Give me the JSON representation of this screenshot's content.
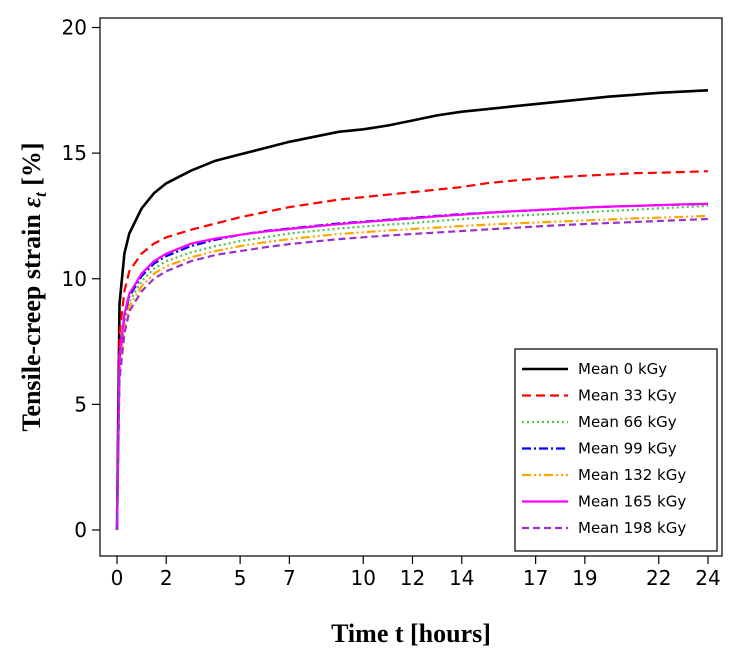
{
  "chart_data": {
    "type": "line",
    "title": "",
    "xlabel": "Time t [hours]",
    "ylabel_text": "Tensile-creep strain ",
    "ylabel_symbol": "ε",
    "ylabel_subscript": "t",
    "ylabel_unit": " [%]",
    "xlim": [
      0,
      24
    ],
    "ylim": [
      -1,
      20.4
    ],
    "x_ticks": [
      0,
      2,
      5,
      7,
      10,
      12,
      14,
      17,
      19,
      22,
      24
    ],
    "x_tick_labels": [
      "0",
      "2",
      "5",
      "7",
      "10",
      "12",
      "14",
      "17",
      "19",
      "22",
      "24"
    ],
    "y_ticks": [
      0,
      5,
      10,
      15,
      20
    ],
    "y_tick_labels": [
      "0",
      "5",
      "10",
      "15",
      "20"
    ],
    "legend_position": "bottom-right",
    "x": [
      0,
      0.1,
      0.3,
      0.5,
      1,
      1.5,
      2,
      3,
      4,
      5,
      6,
      7,
      8,
      9,
      10,
      11,
      12,
      13,
      14,
      15,
      16,
      17,
      18,
      19,
      20,
      21,
      22,
      23,
      24
    ],
    "series": [
      {
        "name": "Mean 0 kGy",
        "color": "#000000",
        "dash": "",
        "values": [
          0,
          9.0,
          11.0,
          11.8,
          12.8,
          13.4,
          13.8,
          14.3,
          14.7,
          14.95,
          15.2,
          15.45,
          15.65,
          15.85,
          15.95,
          16.1,
          16.3,
          16.5,
          16.65,
          16.75,
          16.85,
          16.95,
          17.05,
          17.15,
          17.25,
          17.32,
          17.4,
          17.45,
          17.5
        ]
      },
      {
        "name": "Mean 33 kGy",
        "color": "#ff0000",
        "dash": "9,5",
        "values": [
          0,
          7.8,
          9.5,
          10.3,
          11.0,
          11.4,
          11.65,
          11.95,
          12.2,
          12.45,
          12.65,
          12.85,
          13.0,
          13.15,
          13.25,
          13.35,
          13.45,
          13.55,
          13.65,
          13.8,
          13.9,
          13.98,
          14.05,
          14.1,
          14.15,
          14.2,
          14.22,
          14.25,
          14.28
        ]
      },
      {
        "name": "Mean 66 kGy",
        "color": "#4cc24c",
        "dash": "2,3",
        "values": [
          0,
          6.6,
          8.3,
          9.1,
          9.9,
          10.4,
          10.7,
          11.05,
          11.3,
          11.5,
          11.65,
          11.8,
          11.9,
          12.0,
          12.08,
          12.15,
          12.22,
          12.3,
          12.37,
          12.45,
          12.5,
          12.55,
          12.6,
          12.65,
          12.7,
          12.75,
          12.8,
          12.85,
          12.9
        ]
      },
      {
        "name": "Mean 99 kGy",
        "color": "#0000ff",
        "dash": "9,3,2,3",
        "values": [
          0,
          6.8,
          8.5,
          9.3,
          10.1,
          10.6,
          10.9,
          11.3,
          11.55,
          11.75,
          11.9,
          12.0,
          12.1,
          12.2,
          12.27,
          12.35,
          12.42,
          12.5,
          12.57,
          12.63,
          12.68,
          12.73,
          12.78,
          12.83,
          12.87,
          12.9,
          12.93,
          12.96,
          12.98
        ]
      },
      {
        "name": "Mean 132 kGy",
        "color": "#ffa500",
        "dash": "9,3,2,3,2,3",
        "values": [
          0,
          6.3,
          8.0,
          8.9,
          9.7,
          10.2,
          10.5,
          10.85,
          11.1,
          11.3,
          11.45,
          11.58,
          11.68,
          11.78,
          11.85,
          11.92,
          11.98,
          12.04,
          12.1,
          12.15,
          12.2,
          12.24,
          12.28,
          12.32,
          12.36,
          12.4,
          12.43,
          12.46,
          12.5
        ]
      },
      {
        "name": "Mean 165 kGy",
        "color": "#ff00ff",
        "dash": "",
        "values": [
          0,
          6.9,
          8.6,
          9.4,
          10.2,
          10.7,
          11.0,
          11.4,
          11.6,
          11.75,
          11.88,
          11.98,
          12.08,
          12.17,
          12.25,
          12.33,
          12.4,
          12.48,
          12.55,
          12.62,
          12.68,
          12.73,
          12.78,
          12.83,
          12.87,
          12.9,
          12.93,
          12.96,
          12.98
        ]
      },
      {
        "name": "Mean 198 kGy",
        "color": "#9932cc",
        "dash": "7,4",
        "values": [
          0,
          6.0,
          7.8,
          8.7,
          9.5,
          10.0,
          10.3,
          10.7,
          10.95,
          11.1,
          11.25,
          11.38,
          11.48,
          11.58,
          11.65,
          11.72,
          11.78,
          11.84,
          11.9,
          11.96,
          12.02,
          12.08,
          12.13,
          12.18,
          12.22,
          12.26,
          12.3,
          12.34,
          12.38
        ]
      }
    ]
  }
}
